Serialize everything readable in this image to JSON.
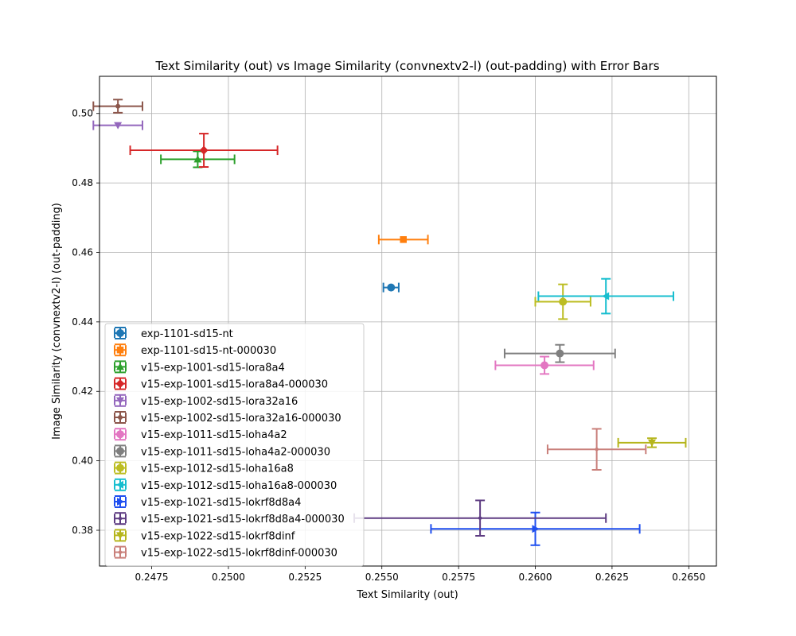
{
  "chart_data": {
    "type": "scatter",
    "title": "Text Similarity (out) vs Image Similarity (convnextv2-l) (out-padding) with Error Bars",
    "xlabel": "Text Similarity (out)",
    "ylabel": "Image Similarity (convnextv2-l) (out-padding)",
    "xlim": [
      0.2458,
      0.2659
    ],
    "ylim": [
      0.3697,
      0.5107
    ],
    "xticks": [
      "0.2450",
      "0.2475",
      "0.2500",
      "0.2525",
      "0.2550",
      "0.2575",
      "0.2600",
      "0.2625",
      "0.2650"
    ],
    "xtick_values": [
      0.245,
      0.2475,
      0.25,
      0.2525,
      0.255,
      0.2575,
      0.26,
      0.2625,
      0.265
    ],
    "yticks": [
      "0.38",
      "0.40",
      "0.42",
      "0.44",
      "0.46",
      "0.48",
      "0.50"
    ],
    "ytick_values": [
      0.38,
      0.4,
      0.42,
      0.44,
      0.46,
      0.48,
      0.5
    ],
    "grid": true,
    "legend_position": "lower-left",
    "series": [
      {
        "name": "exp-1101-sd15-nt",
        "color": "#1f77b4",
        "marker": "circle",
        "x": 0.2553,
        "y": 0.4499,
        "xerr": 0.00025,
        "yerr": 0.0
      },
      {
        "name": "exp-1101-sd15-nt-000030",
        "color": "#ff7f0e",
        "marker": "square",
        "x": 0.2557,
        "y": 0.4637,
        "xerr": 0.0008,
        "yerr": 0.0
      },
      {
        "name": "v15-exp-1001-sd15-lora8a4",
        "color": "#2ca02c",
        "marker": "triangle-up",
        "x": 0.249,
        "y": 0.4868,
        "xerr": 0.0012,
        "yerr": 0.0023
      },
      {
        "name": "v15-exp-1001-sd15-lora8a4-000030",
        "color": "#d62728",
        "marker": "diamond",
        "x": 0.2492,
        "y": 0.4894,
        "xerr": 0.0024,
        "yerr": 0.0048
      },
      {
        "name": "v15-exp-1002-sd15-lora32a16",
        "color": "#9467bd",
        "marker": "triangle-down",
        "x": 0.2464,
        "y": 0.4966,
        "xerr": 0.0008,
        "yerr": 0.0
      },
      {
        "name": "v15-exp-1002-sd15-lora32a16-000030",
        "color": "#8c564b",
        "marker": "circle-small",
        "x": 0.2464,
        "y": 0.5021,
        "xerr": 0.0008,
        "yerr": 0.0019
      },
      {
        "name": "v15-exp-1011-sd15-loha4a2",
        "color": "#e377c2",
        "marker": "circle",
        "x": 0.2603,
        "y": 0.4275,
        "xerr": 0.0016,
        "yerr": 0.0025
      },
      {
        "name": "v15-exp-1011-sd15-loha4a2-000030",
        "color": "#7f7f7f",
        "marker": "circle",
        "x": 0.2608,
        "y": 0.4309,
        "xerr": 0.0018,
        "yerr": 0.0025
      },
      {
        "name": "v15-exp-1012-sd15-loha16a8",
        "color": "#bcbd22",
        "marker": "circle",
        "x": 0.2609,
        "y": 0.4458,
        "xerr": 0.0009,
        "yerr": 0.005
      },
      {
        "name": "v15-exp-1012-sd15-loha16a8-000030",
        "color": "#17becf",
        "marker": "triangle-left",
        "x": 0.2623,
        "y": 0.4474,
        "xerr": 0.0022,
        "yerr": 0.005
      },
      {
        "name": "v15-exp-1021-sd15-lokrf8d8a4",
        "color": "#1f4ff0",
        "marker": "triangle-right",
        "x": 0.26,
        "y": 0.3804,
        "xerr": 0.0034,
        "yerr": 0.0047
      },
      {
        "name": "v15-exp-1021-sd15-lokrf8d8a4-000030",
        "color": "#5e3c82",
        "marker": "dot",
        "x": 0.2582,
        "y": 0.3835,
        "xerr": 0.0041,
        "yerr": 0.0051
      },
      {
        "name": "v15-exp-1022-sd15-lokrf8dinf",
        "color": "#b5b51c",
        "marker": "triangle-down",
        "x": 0.2638,
        "y": 0.4052,
        "xerr": 0.0011,
        "yerr": 0.0013
      },
      {
        "name": "v15-exp-1022-sd15-lokrf8dinf-000030",
        "color": "#c97f7a",
        "marker": "dot",
        "x": 0.262,
        "y": 0.4033,
        "xerr": 0.0016,
        "yerr": 0.0059
      }
    ]
  }
}
